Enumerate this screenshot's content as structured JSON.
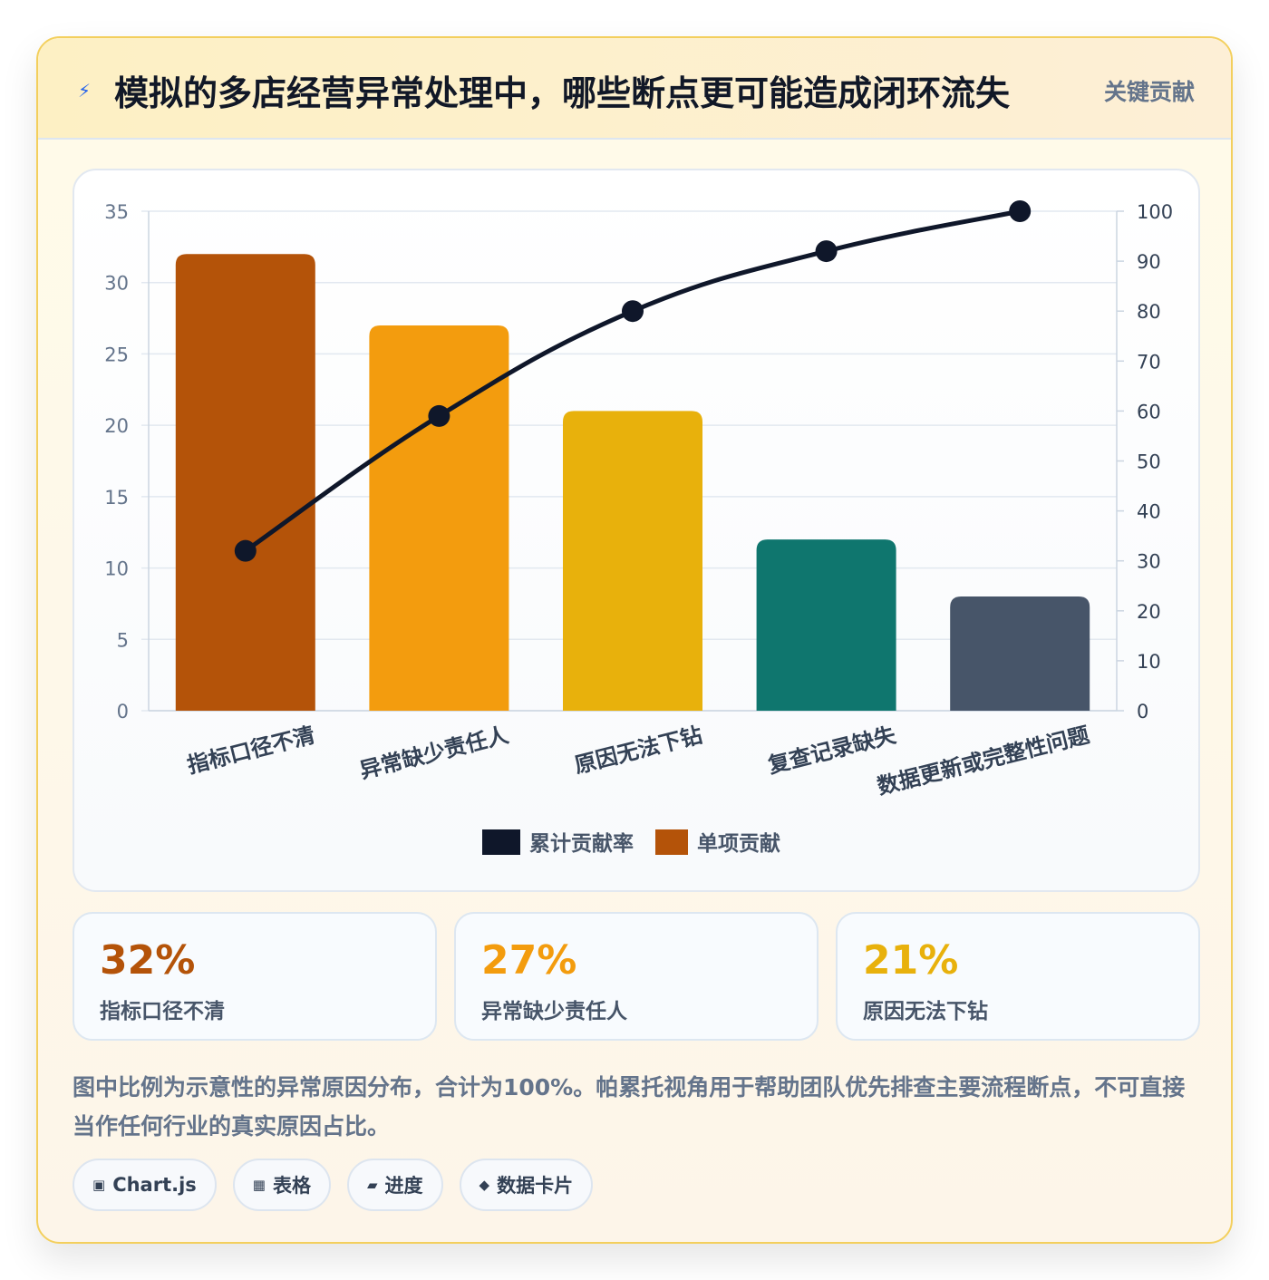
{
  "header": {
    "icon": "lightning-icon",
    "icon_glyph": "⚡",
    "title": "模拟的多店经营异常处理中，哪些断点更可能造成闭环流失",
    "badge": "关键贡献"
  },
  "colors": {
    "bars": [
      "#b45309",
      "#f39c0e",
      "#e8b10c",
      "#0f766e",
      "#475569"
    ],
    "line": "#0f172a",
    "grid": "#e2e8f0"
  },
  "chart_data": {
    "type": "bar",
    "categories": [
      "指标口径不清",
      "异常缺少责任人",
      "原因无法下钻",
      "复查记录缺失",
      "数据更新或完整性问题"
    ],
    "series": [
      {
        "name": "单项贡献",
        "type": "bar",
        "axis": "left",
        "values": [
          32,
          27,
          21,
          12,
          8
        ]
      },
      {
        "name": "累计贡献率",
        "type": "line",
        "axis": "right",
        "values": [
          32,
          59,
          80,
          92,
          100
        ]
      }
    ],
    "y_left": {
      "min": 0,
      "max": 35,
      "ticks": [
        0,
        5,
        10,
        15,
        20,
        25,
        30,
        35
      ]
    },
    "y_right": {
      "min": 0,
      "max": 100,
      "ticks": [
        0,
        10,
        20,
        30,
        40,
        50,
        60,
        70,
        80,
        90,
        100
      ]
    },
    "legend": [
      {
        "label": "累计贡献率",
        "color": "#0f172a"
      },
      {
        "label": "单项贡献",
        "color": "#b45309"
      }
    ],
    "legend_position": "bottom",
    "grid": true
  },
  "stats": [
    {
      "value": "32%",
      "label": "指标口径不清",
      "color": "#b45309"
    },
    {
      "value": "27%",
      "label": "异常缺少责任人",
      "color": "#f39c0e"
    },
    {
      "value": "21%",
      "label": "原因无法下钻",
      "color": "#e8b10c"
    }
  ],
  "note": "图中比例为示意性的异常原因分布，合计为100%。帕累托视角用于帮助团队优先排查主要流程断点，不可直接当作任何行业的真实原因占比。",
  "tags": [
    {
      "icon": "chart-icon",
      "glyph": "▣",
      "label": "Chart.js"
    },
    {
      "icon": "table-icon",
      "glyph": "▦",
      "label": "表格"
    },
    {
      "icon": "progress-icon",
      "glyph": "▰",
      "label": "进度"
    },
    {
      "icon": "card-icon",
      "glyph": "◆",
      "label": "数据卡片"
    }
  ]
}
